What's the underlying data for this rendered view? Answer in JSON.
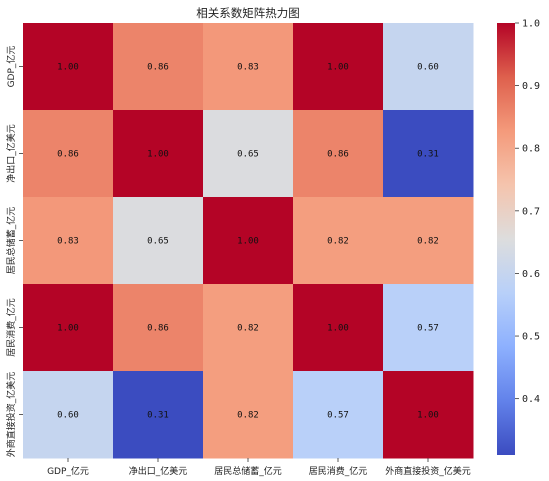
{
  "chart_data": {
    "type": "heatmap",
    "title": "相关系数矩阵热力图",
    "x_labels": [
      "GDP_亿元",
      "净出口_亿美元",
      "居民总储蓄_亿元",
      "居民消费_亿元",
      "外商直接投资_亿美元"
    ],
    "y_labels": [
      "GDP_亿元",
      "净出口_亿美元",
      "居民总储蓄_亿元",
      "居民消费_亿元",
      "外商直接投资_亿美元"
    ],
    "values": [
      [
        1.0,
        0.86,
        0.83,
        1.0,
        0.6
      ],
      [
        0.86,
        1.0,
        0.65,
        0.86,
        0.31
      ],
      [
        0.83,
        0.65,
        1.0,
        0.82,
        0.82
      ],
      [
        1.0,
        0.86,
        0.82,
        1.0,
        0.57
      ],
      [
        0.6,
        0.31,
        0.82,
        0.57,
        1.0
      ]
    ],
    "colormap": "coolwarm",
    "vmin": 0.31,
    "vmax": 1.0,
    "annotation_format": "0.00",
    "colorbar": {
      "ticks": [
        "0.4",
        "0.5",
        "0.6",
        "0.7",
        "0.8",
        "0.9",
        "1.0"
      ],
      "tick_values": [
        0.4,
        0.5,
        0.6,
        0.7,
        0.8,
        0.9,
        1.0
      ]
    }
  }
}
